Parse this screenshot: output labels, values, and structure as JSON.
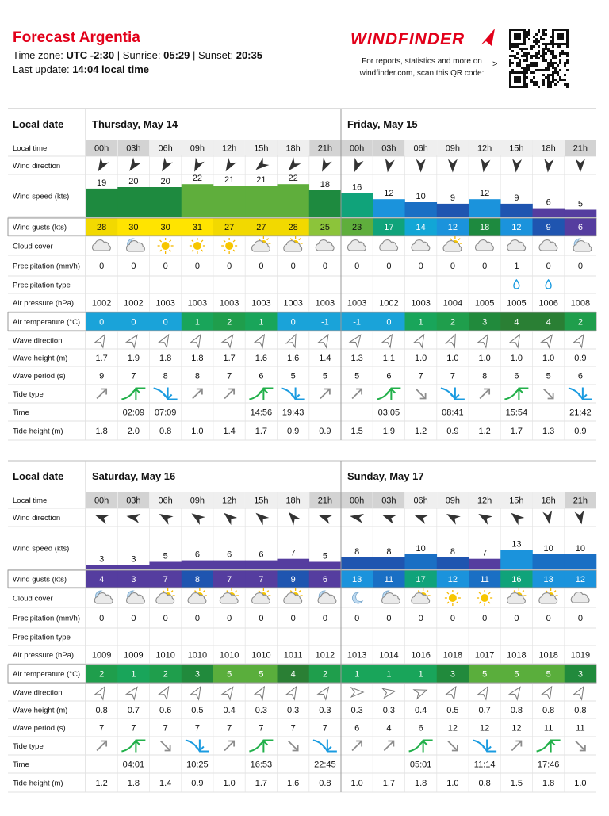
{
  "header": {
    "title": "Forecast Argentia",
    "timezone_label": "Time zone:",
    "timezone": "UTC -2:30",
    "separator": "|",
    "sunrise_label": "Sunrise:",
    "sunrise": "05:29",
    "sunset_label": "Sunset:",
    "sunset": "20:35",
    "update_label": "Last update:",
    "update": "14:04 local time"
  },
  "promo": {
    "logo": "WINDFINDER",
    "line1": "For reports, statistics and more on",
    "line2": "windfinder.com, scan this QR code:",
    "arrow": ">"
  },
  "row_labels": [
    "Local date",
    "Local time",
    "Wind direction",
    "Wind speed (kts)",
    "Wind gusts (kts)",
    "Cloud cover",
    "Precipitation (mm/h)",
    "Precipitation type",
    "Air pressure (hPa)",
    "Air temperature (°C)",
    "Wave direction",
    "Wave height (m)",
    "Wave period (s)",
    "Tide type",
    "Time",
    "Tide height (m)"
  ],
  "blocks": [
    {
      "days": [
        "Thursday, May 14",
        "Friday, May 15"
      ],
      "times": [
        "00h",
        "03h",
        "06h",
        "09h",
        "12h",
        "15h",
        "18h",
        "21h",
        "00h",
        "03h",
        "06h",
        "09h",
        "12h",
        "15h",
        "18h",
        "21h"
      ],
      "wind_direction": [
        120,
        125,
        120,
        115,
        120,
        140,
        130,
        115,
        110,
        100,
        90,
        90,
        100,
        95,
        95,
        90
      ],
      "wind_speed": [
        19,
        20,
        20,
        22,
        21,
        21,
        22,
        18,
        16,
        12,
        10,
        9,
        12,
        9,
        6,
        5
      ],
      "wind_gusts": [
        28,
        30,
        30,
        31,
        27,
        27,
        28,
        25,
        23,
        17,
        14,
        12,
        18,
        12,
        9,
        6
      ],
      "cloud_cover": [
        "cloudy",
        "night-partly",
        "sunny",
        "sunny",
        "sunny",
        "partly",
        "partly",
        "cloudy",
        "cloudy",
        "cloudy",
        "cloudy",
        "partly",
        "cloudy",
        "cloudy",
        "cloudy",
        "night-partly"
      ],
      "precipitation": [
        0,
        0,
        0,
        0,
        0,
        0,
        0,
        0,
        0,
        0,
        0,
        0,
        0,
        1,
        0,
        0
      ],
      "precipitation_type": [
        null,
        null,
        null,
        null,
        null,
        null,
        null,
        null,
        null,
        null,
        null,
        null,
        null,
        "rain",
        "rain",
        null
      ],
      "air_pressure": [
        1002,
        1002,
        1003,
        1003,
        1003,
        1003,
        1003,
        1003,
        1003,
        1002,
        1003,
        1004,
        1005,
        1005,
        1006,
        1008
      ],
      "air_temperature": [
        0,
        0,
        0,
        1,
        2,
        1,
        0,
        -1,
        -1,
        0,
        1,
        2,
        3,
        4,
        4,
        2
      ],
      "wave_direction": [
        300,
        305,
        300,
        300,
        305,
        300,
        295,
        300,
        305,
        300,
        300,
        295,
        300,
        300,
        305,
        300
      ],
      "wave_height": [
        "1.7",
        "1.9",
        "1.8",
        "1.8",
        "1.7",
        "1.6",
        "1.6",
        "1.4",
        "1.3",
        "1.1",
        "1.0",
        "1.0",
        "1.0",
        "1.0",
        "1.0",
        "0.9"
      ],
      "wave_period": [
        9,
        7,
        8,
        8,
        7,
        6,
        5,
        5,
        5,
        6,
        7,
        7,
        8,
        6,
        5,
        6
      ],
      "tide_type": [
        "rising",
        "high",
        "low",
        "rising",
        "rising",
        "high",
        "low",
        "rising",
        "rising",
        "high",
        "falling",
        "low",
        "rising",
        "high",
        "falling",
        "low"
      ],
      "tide_time": [
        null,
        "02:09",
        "07:09",
        null,
        null,
        "14:56",
        "19:43",
        null,
        null,
        "03:05",
        null,
        "08:41",
        null,
        "15:54",
        null,
        "21:42"
      ],
      "tide_height": [
        "1.8",
        "2.0",
        "0.8",
        "1.0",
        "1.4",
        "1.7",
        "0.9",
        "0.9",
        "1.5",
        "1.9",
        "1.2",
        "0.9",
        "1.2",
        "1.7",
        "1.3",
        "0.9"
      ]
    },
    {
      "days": [
        "Saturday, May 16",
        "Sunday, May 17"
      ],
      "times": [
        "00h",
        "03h",
        "06h",
        "09h",
        "12h",
        "15h",
        "18h",
        "21h",
        "00h",
        "03h",
        "06h",
        "09h",
        "12h",
        "15h",
        "18h",
        "21h"
      ],
      "wind_direction": [
        200,
        190,
        210,
        215,
        220,
        220,
        230,
        200,
        190,
        200,
        200,
        210,
        210,
        220,
        80,
        80
      ],
      "wind_speed": [
        3,
        3,
        5,
        6,
        6,
        6,
        7,
        5,
        8,
        8,
        10,
        8,
        7,
        13,
        10,
        10
      ],
      "wind_gusts": [
        4,
        3,
        7,
        8,
        7,
        7,
        9,
        6,
        13,
        11,
        17,
        12,
        11,
        16,
        13,
        12
      ],
      "cloud_cover": [
        "night-partly",
        "night-partly",
        "partly",
        "partly",
        "partly",
        "partly",
        "partly",
        "night-partly",
        "night-clear",
        "night-partly",
        "partly",
        "sunny",
        "sunny",
        "partly",
        "partly",
        "cloudy"
      ],
      "precipitation": [
        0,
        0,
        0,
        0,
        0,
        0,
        0,
        0,
        0,
        0,
        0,
        0,
        0,
        0,
        0,
        0
      ],
      "precipitation_type": [
        null,
        null,
        null,
        null,
        null,
        null,
        null,
        null,
        null,
        null,
        null,
        null,
        null,
        null,
        null,
        null
      ],
      "air_pressure": [
        1009,
        1009,
        1010,
        1010,
        1010,
        1010,
        1011,
        1012,
        1013,
        1014,
        1016,
        1018,
        1017,
        1018,
        1018,
        1019
      ],
      "air_temperature": [
        2,
        1,
        2,
        3,
        5,
        5,
        4,
        2,
        1,
        1,
        1,
        3,
        5,
        5,
        5,
        3
      ],
      "wave_direction": [
        300,
        305,
        300,
        300,
        305,
        300,
        300,
        305,
        0,
        350,
        340,
        300,
        300,
        305,
        300,
        300
      ],
      "wave_height": [
        "0.8",
        "0.7",
        "0.6",
        "0.5",
        "0.4",
        "0.3",
        "0.3",
        "0.3",
        "0.3",
        "0.3",
        "0.4",
        "0.5",
        "0.7",
        "0.8",
        "0.8",
        "0.8"
      ],
      "wave_period": [
        7,
        7,
        7,
        7,
        7,
        7,
        7,
        7,
        6,
        4,
        6,
        12,
        12,
        12,
        11,
        11
      ],
      "tide_type": [
        "rising",
        "high",
        "falling",
        "low",
        "rising",
        "high",
        "falling",
        "low",
        "rising",
        "rising",
        "high",
        "falling",
        "low",
        "rising",
        "high",
        "falling"
      ],
      "tide_time": [
        null,
        "04:01",
        null,
        "10:25",
        null,
        "16:53",
        null,
        "22:45",
        null,
        null,
        "05:01",
        null,
        "11:14",
        null,
        "17:46",
        null
      ],
      "tide_height": [
        "1.2",
        "1.8",
        "1.4",
        "0.9",
        "1.0",
        "1.7",
        "1.6",
        "0.8",
        "1.0",
        "1.7",
        "1.8",
        "1.0",
        "0.8",
        "1.5",
        "1.8",
        "1.0"
      ]
    }
  ]
}
